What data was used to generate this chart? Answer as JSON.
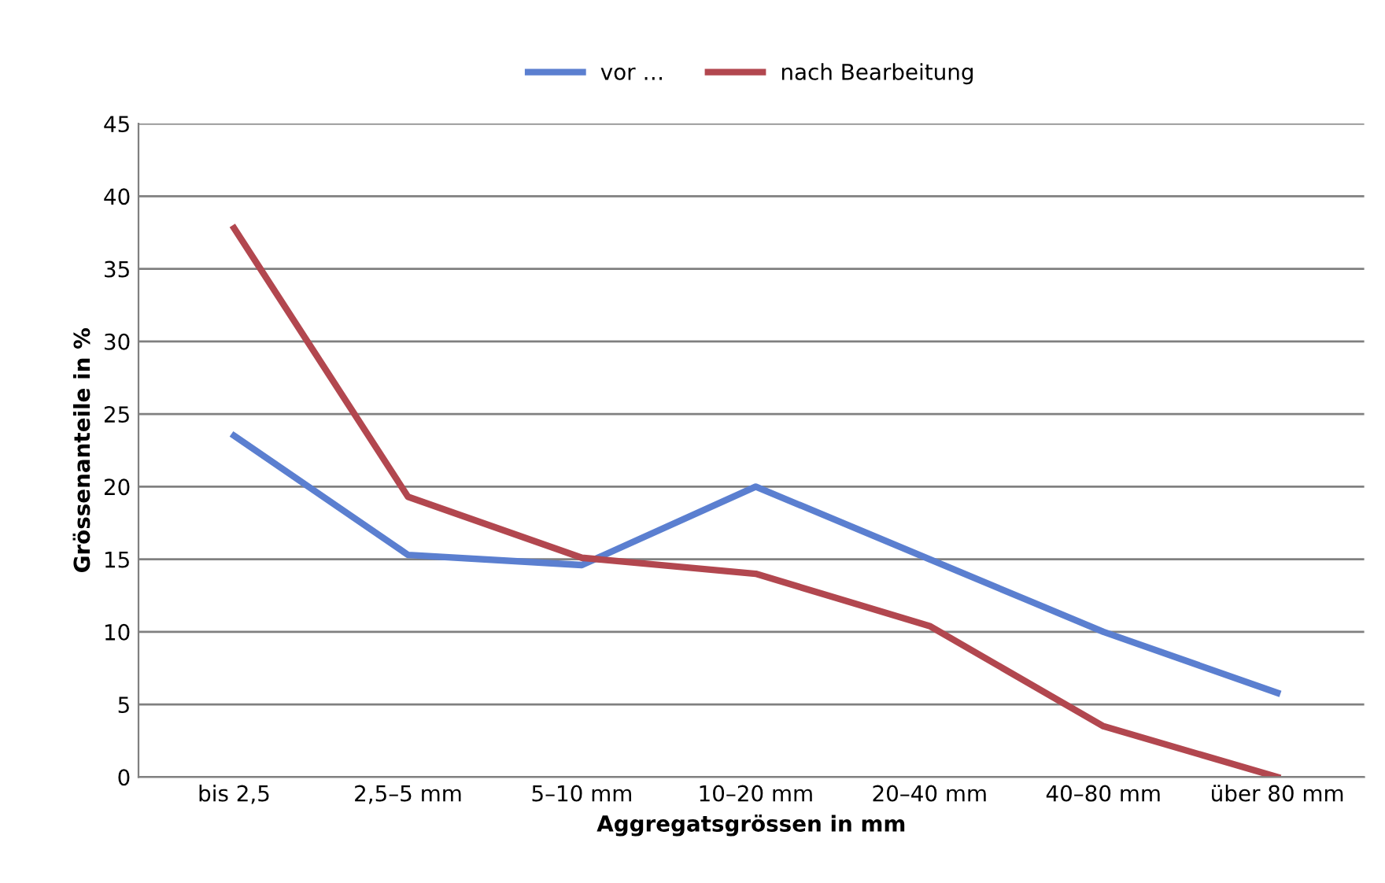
{
  "chart_data": {
    "type": "line",
    "xlabel": "Aggregatsgrössen in mm",
    "ylabel": "Grössenanteile in %",
    "categories": [
      "bis 2,5",
      "2,5–5 mm",
      "5–10 mm",
      "10–20 mm",
      "20–40 mm",
      "40–80 mm",
      "über 80 mm"
    ],
    "series": [
      {
        "name": "vor …",
        "color": "#5b7fd0",
        "values": [
          23.5,
          15.3,
          14.6,
          20,
          15,
          10,
          5.8
        ]
      },
      {
        "name": "nach Bearbeitung",
        "color": "#b2474f",
        "values": [
          37.8,
          19.3,
          15.1,
          14,
          10.4,
          3.5,
          0
        ]
      }
    ],
    "ylim": [
      0,
      45
    ],
    "yticks": [
      0,
      5,
      10,
      15,
      20,
      25,
      30,
      35,
      40,
      45
    ],
    "grid": "y",
    "legend": "top",
    "marker": "none",
    "line_style": "solid"
  }
}
